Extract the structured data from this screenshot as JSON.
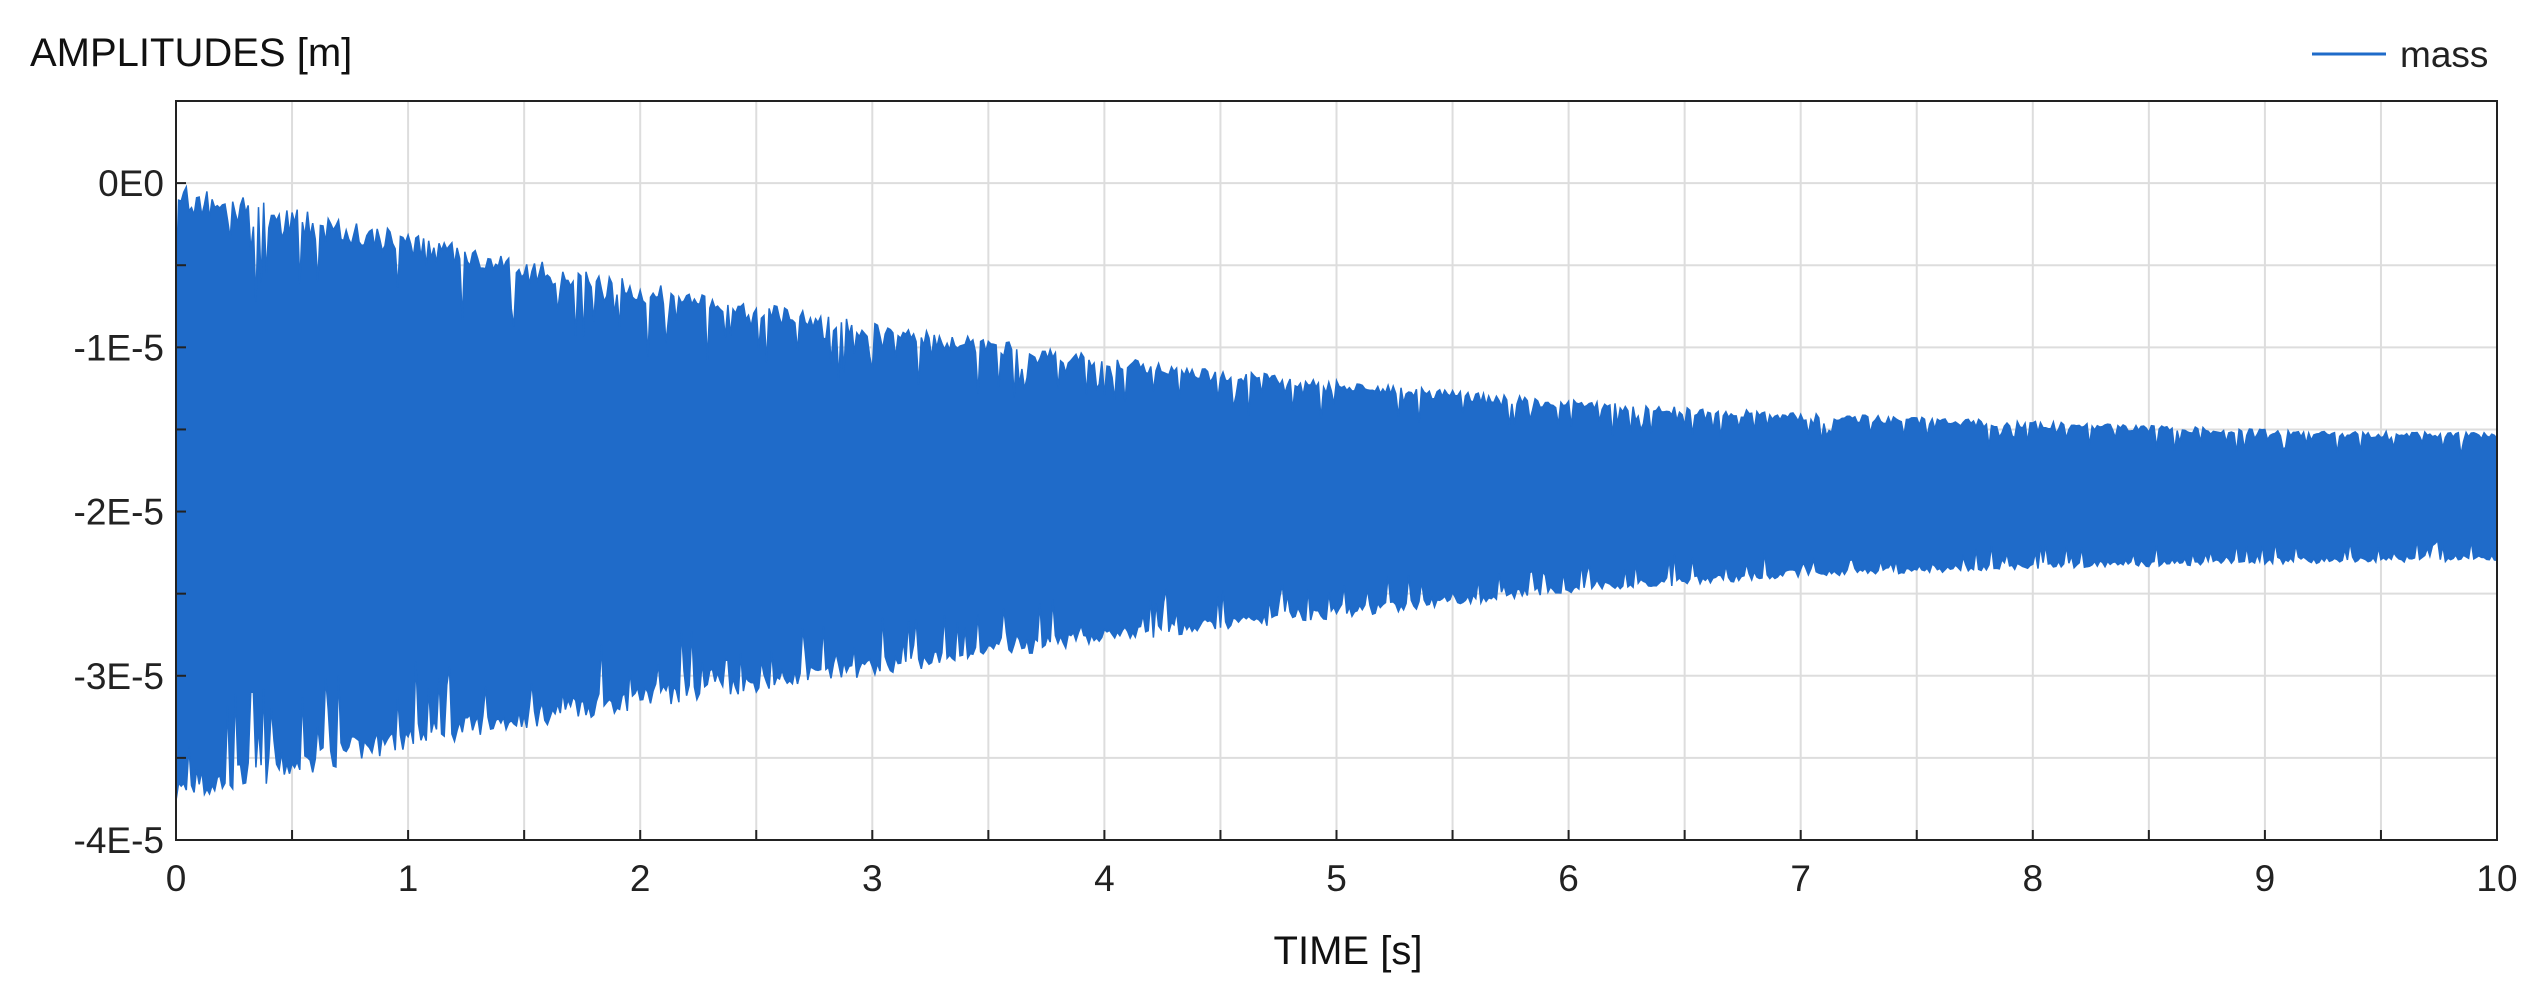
{
  "chart_data": {
    "type": "line",
    "ylabel": "AMPLITUDES [m]",
    "xlabel": "TIME [s]",
    "xlim": [
      0,
      10
    ],
    "ylim": [
      -4e-05,
      5e-06
    ],
    "grid": true,
    "legend_placement": "top-right",
    "x_ticks": [
      0,
      1,
      2,
      3,
      4,
      5,
      6,
      7,
      8,
      9,
      10
    ],
    "x_tick_labels": [
      "0",
      "1",
      "2",
      "3",
      "4",
      "5",
      "6",
      "7",
      "8",
      "9",
      "10"
    ],
    "y_ticks": [
      0,
      -1e-05,
      -2e-05,
      -3e-05,
      -4e-05
    ],
    "y_tick_labels": [
      "0E0",
      "-1E-5",
      "-2E-5",
      "-3E-5",
      "-4E-5"
    ],
    "series": [
      {
        "name": "mass",
        "color": "#1f6bc9",
        "description_points": {
          "x": [
            0,
            1,
            2,
            3,
            4,
            5,
            6,
            7,
            8,
            9,
            10
          ],
          "upper_envelope": [
            0.0,
            -3e-06,
            -6e-06,
            -8.5e-06,
            -1.05e-05,
            -1.2e-05,
            -1.32e-05,
            -1.4e-05,
            -1.45e-05,
            -1.5e-05,
            -1.52e-05
          ],
          "lower_envelope": [
            -3.8e-05,
            -3.45e-05,
            -3.2e-05,
            -3e-05,
            -2.8e-05,
            -2.65e-05,
            -2.5e-05,
            -2.4e-05,
            -2.35e-05,
            -2.32e-05,
            -2.3e-05
          ]
        }
      }
    ]
  }
}
